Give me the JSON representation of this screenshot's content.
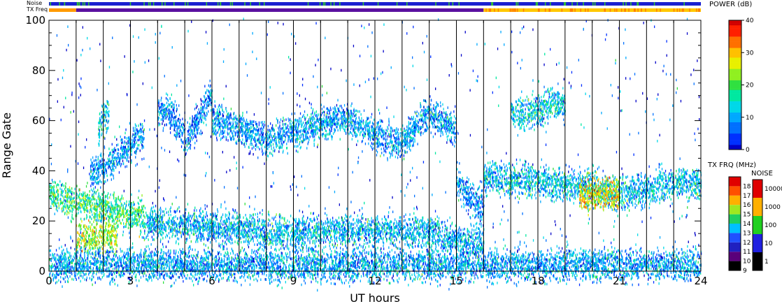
{
  "chart_data": [
    {
      "type": "heatmap",
      "title": "",
      "xlabel": "UT hours",
      "ylabel": "Range Gate",
      "xlim": [
        0,
        24
      ],
      "ylim": [
        0,
        100
      ],
      "x_ticks": [
        0,
        3,
        6,
        9,
        12,
        15,
        18,
        21,
        24
      ],
      "y_ticks": [
        0,
        20,
        40,
        60,
        80,
        100
      ],
      "grid": "vertical lines every hour",
      "value_label": "POWER (dB)",
      "colorbar": {
        "title": "POWER (dB)",
        "range": [
          0,
          40
        ],
        "ticks": [
          0,
          10,
          20,
          30,
          40
        ]
      },
      "colorscale": [
        "#000000",
        "#3b0080",
        "#1a20e0",
        "#0060ff",
        "#00b0ff",
        "#00e0c8",
        "#30e060",
        "#90f020",
        "#e8f000",
        "#ffb000",
        "#ff5000",
        "#e00000"
      ],
      "features": [
        {
          "name_note": "",
          "x": [
            0.0,
            1.0,
            2.0,
            3.0,
            3.5
          ],
          "y_center": [
            30,
            27,
            25,
            22,
            20
          ],
          "power": 18
        },
        {
          "x": [
            3.5,
            6.0,
            9.0,
            12.0,
            14.0,
            15.0,
            16.0
          ],
          "y_center": [
            19,
            17,
            15,
            16,
            15,
            12,
            11
          ],
          "power": 11
        },
        {
          "x": [
            1.0,
            1.5,
            2.0,
            2.5
          ],
          "y_center": [
            12,
            13,
            14,
            13
          ],
          "power": 24
        },
        {
          "x": [
            1.8,
            2.0,
            2.2
          ],
          "y_center": [
            55,
            60,
            62
          ],
          "power": 13
        },
        {
          "x": [
            1.5,
            2.5,
            3.5
          ],
          "y_center": [
            37,
            45,
            55
          ],
          "power": 9
        },
        {
          "x": [
            4.0,
            4.5,
            5.0,
            5.5,
            6.0
          ],
          "y_center": [
            64,
            62,
            52,
            60,
            70
          ],
          "power": 8
        },
        {
          "x": [
            6.0,
            7.0,
            8.0,
            9.0,
            10.0,
            11.0,
            12.0,
            13.0,
            14.0,
            15.0
          ],
          "y_center": [
            60,
            56,
            52,
            55,
            58,
            60,
            54,
            50,
            63,
            55
          ],
          "power": 10
        },
        {
          "x": [
            15.0,
            15.5,
            16.0
          ],
          "y_center": [
            35,
            28,
            25
          ],
          "power": 9
        },
        {
          "x": [
            16.0,
            18.0,
            20.0,
            21.0,
            22.0,
            23.0,
            24.0
          ],
          "y_center": [
            37,
            35,
            33,
            30,
            32,
            35,
            34
          ],
          "power": 12
        },
        {
          "x": [
            19.5,
            20.0,
            20.5,
            21.0
          ],
          "y_center": [
            30,
            30,
            31,
            30
          ],
          "power": 27
        },
        {
          "x": [
            17.0,
            18.0,
            18.5,
            19.0
          ],
          "y_center": [
            62,
            63,
            67,
            65
          ],
          "power": 13
        },
        {
          "x": [
            0.0,
            6.0,
            12.0,
            18.0,
            24.0
          ],
          "y_center": [
            2,
            2,
            2,
            2,
            2
          ],
          "power": 10
        }
      ]
    },
    {
      "type": "heatmap",
      "title": "TX FRQ (MHz)",
      "colorbar": {
        "title": "TX FRQ (MHz)",
        "ticks": [
          9,
          10,
          11,
          12,
          13,
          14,
          15,
          16,
          17,
          18
        ]
      },
      "colors": [
        "#000000",
        "#5a007a",
        "#2020c0",
        "#2050ff",
        "#00c0ff",
        "#20d060",
        "#a0e820",
        "#ffb000",
        "#ff5000",
        "#e00000"
      ]
    },
    {
      "type": "heatmap",
      "title": "NOISE",
      "colorbar": {
        "title": "NOISE",
        "ticks": [
          "1",
          "10",
          "100",
          "1000",
          "10000"
        ]
      },
      "colors": [
        "#000000",
        "#2020e0",
        "#20d020",
        "#ffb000",
        "#e00000"
      ]
    }
  ],
  "header_bars": {
    "noise_label": "Noise",
    "txfreq_label": "TX Freq",
    "noise_color": "#1a20d0",
    "noise_flecks_color": "#30c030",
    "txfreq_segments": [
      {
        "from": 0.0,
        "to": 1.0,
        "color": "#ff9a00"
      },
      {
        "from": 1.0,
        "to": 16.0,
        "color": "#5a10a0"
      },
      {
        "from": 16.0,
        "to": 24.0,
        "color": "#ffc800"
      }
    ]
  }
}
